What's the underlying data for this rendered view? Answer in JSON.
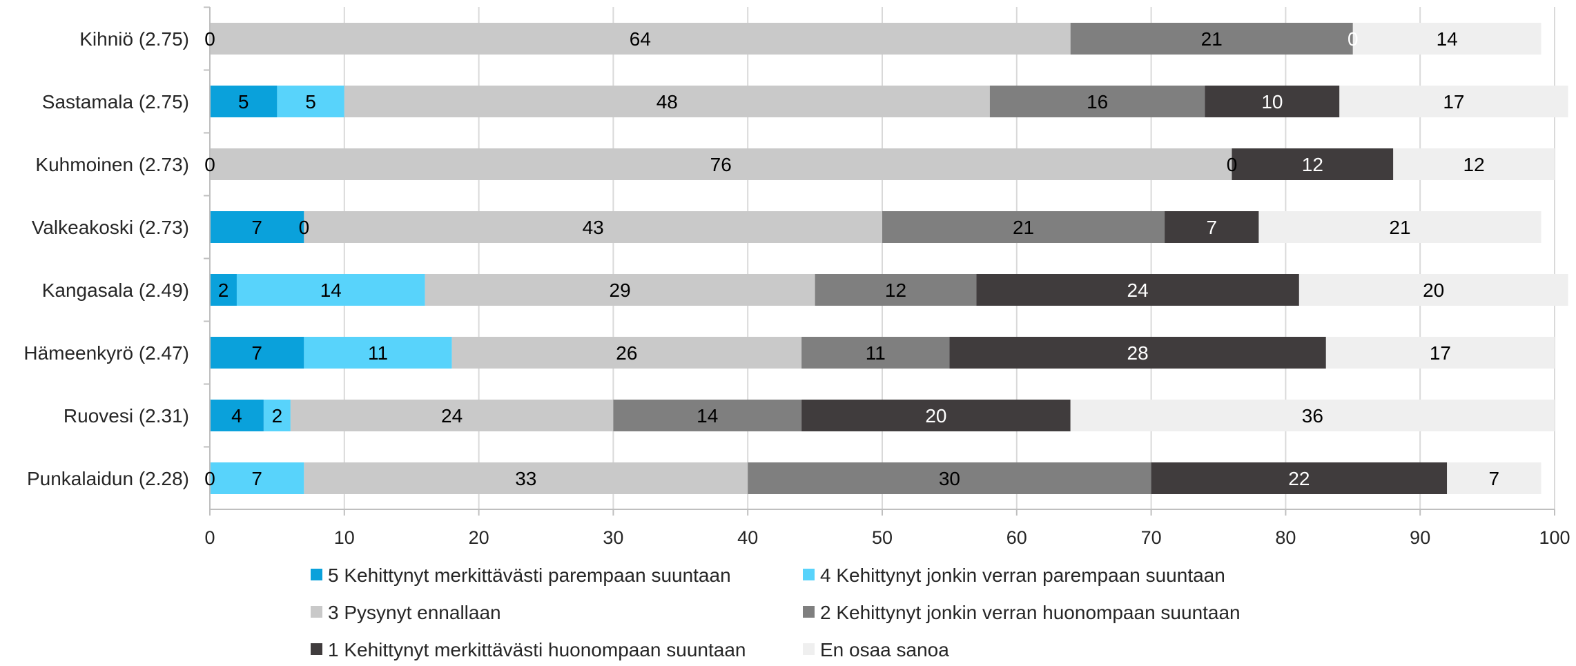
{
  "chart_data": {
    "type": "bar",
    "orientation": "horizontal",
    "stacked": true,
    "categories": [
      "Kihniö (2.75)",
      "Sastamala (2.75)",
      "Kuhmoinen (2.73)",
      "Valkeakoski (2.73)",
      "Kangasala (2.49)",
      "Hämeenkyrö (2.47)",
      "Ruovesi (2.31)",
      "Punkalaidun (2.28)"
    ],
    "series": [
      {
        "name": "5 Kehittynyt merkittävästi parempaan suuntaan",
        "color": "#0aa1db",
        "label_color": "#000000",
        "values": [
          0,
          5,
          0,
          7,
          2,
          7,
          4,
          0
        ],
        "labels": [
          "0",
          "5",
          "0",
          "7",
          "2",
          "7",
          "4",
          "0"
        ]
      },
      {
        "name": "4 Kehittynyt jonkin verran parempaan suuntaan",
        "color": "#58d3fb",
        "label_color": "#000000",
        "values": [
          0,
          5,
          0,
          0,
          14,
          11,
          2,
          7
        ],
        "labels": [
          "",
          "5",
          "",
          "0",
          "14",
          "11",
          "2",
          "7"
        ]
      },
      {
        "name": "3 Pysynyt ennallaan",
        "color": "#c9c9c9",
        "label_color": "#000000",
        "values": [
          64,
          48,
          76,
          43,
          29,
          26,
          24,
          33
        ],
        "labels": [
          "64",
          "48",
          "76",
          "43",
          "29",
          "26",
          "24",
          "33"
        ]
      },
      {
        "name": "2 Kehittynyt jonkin verran huonompaan suuntaan",
        "color": "#7f7f7f",
        "label_color": "#000000",
        "values": [
          21,
          16,
          0,
          21,
          12,
          11,
          14,
          30
        ],
        "labels": [
          "21",
          "16",
          "0",
          "21",
          "12",
          "11",
          "14",
          "30"
        ]
      },
      {
        "name": "1 Kehittynyt merkittävästi huonompaan suuntaan",
        "color": "#403c3d",
        "label_color": "#ffffff",
        "values": [
          0,
          10,
          12,
          7,
          24,
          28,
          20,
          22
        ],
        "labels": [
          "0",
          "10",
          "12",
          "7",
          "24",
          "28",
          "20",
          "22"
        ]
      },
      {
        "name": "En osaa sanoa",
        "color": "#efefef",
        "label_color": "#000000",
        "values": [
          14,
          17,
          12,
          21,
          20,
          17,
          36,
          7
        ],
        "labels": [
          "14",
          "17",
          "12",
          "21",
          "20",
          "17",
          "36",
          "7"
        ]
      }
    ],
    "xlim": [
      0,
      100
    ],
    "xticks": [
      "0",
      "10",
      "20",
      "30",
      "40",
      "50",
      "60",
      "70",
      "80",
      "90",
      "100"
    ],
    "grid": true,
    "legend_position": "bottom"
  }
}
